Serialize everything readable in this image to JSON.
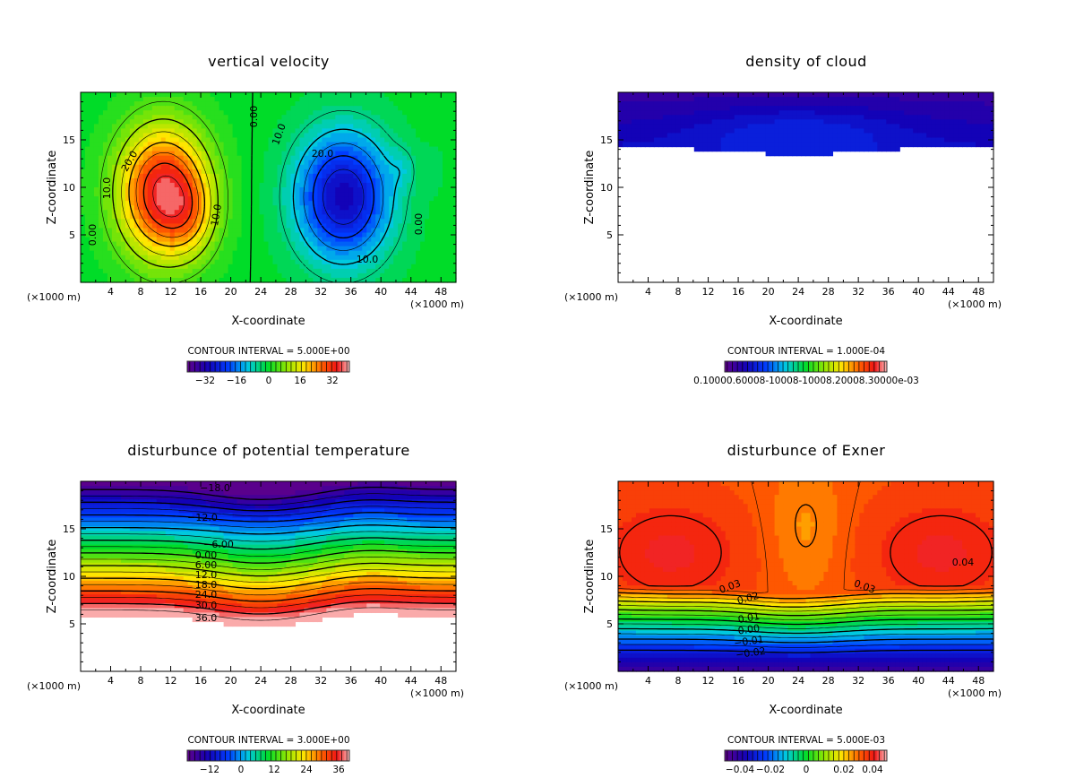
{
  "chart_data": [
    {
      "id": "w",
      "type": "heatmap",
      "title": "vertical velocity",
      "xlabel": "X-coordinate",
      "ylabel": "Z-coordinate",
      "x_unit_left": "(×1000 m)",
      "x_unit_right": "(×1000 m)",
      "xlim": [
        0,
        50
      ],
      "ylim": [
        0,
        20
      ],
      "x_ticks": [
        4,
        8,
        12,
        16,
        20,
        24,
        28,
        32,
        36,
        40,
        44,
        48
      ],
      "y_ticks": [
        5,
        10,
        15
      ],
      "contour_interval_text": "CONTOUR INTERVAL = 5.000E+00",
      "colorbar_ticks": [
        "−32",
        "−16",
        "0",
        "16",
        "32"
      ],
      "colorbar_range": [
        -40,
        40
      ],
      "contour_labels": [
        "0.00",
        "10.0",
        "20.0",
        "0.00",
        "10.0",
        "20.0",
        "10.0",
        "10.0",
        "0.00"
      ]
    },
    {
      "id": "qc",
      "type": "heatmap",
      "title": "density of cloud",
      "xlabel": "X-coordinate",
      "ylabel": "Z-coordinate",
      "x_unit_left": "(×1000 m)",
      "x_unit_right": "(×1000 m)",
      "xlim": [
        0,
        50
      ],
      "ylim": [
        0,
        20
      ],
      "x_ticks": [
        4,
        8,
        12,
        16,
        20,
        24,
        28,
        32,
        36,
        40,
        44,
        48
      ],
      "y_ticks": [
        5,
        10,
        15
      ],
      "contour_interval_text": "CONTOUR INTERVAL = 1.000E-04",
      "colorbar_ticks_text": "0.10000.60008-10008-10008.20008.30000e-03",
      "contour_labels": []
    },
    {
      "id": "pt",
      "type": "heatmap",
      "title": "disturbunce of potential temperature",
      "xlabel": "X-coordinate",
      "ylabel": "Z-coordinate",
      "x_unit_left": "(×1000 m)",
      "x_unit_right": "(×1000 m)",
      "xlim": [
        0,
        50
      ],
      "ylim": [
        0,
        20
      ],
      "x_ticks": [
        4,
        8,
        12,
        16,
        20,
        24,
        28,
        32,
        36,
        40,
        44,
        48
      ],
      "y_ticks": [
        5,
        10,
        15
      ],
      "contour_interval_text": "CONTOUR INTERVAL = 3.000E+00",
      "colorbar_ticks": [
        "−12",
        "0",
        "12",
        "24",
        "36"
      ],
      "colorbar_range": [
        -21,
        39
      ],
      "contour_labels": [
        "−18.0",
        "−12.0",
        "−6.00",
        "0.00",
        "6.00",
        "12.0",
        "18.0",
        "24.0",
        "30.0",
        "36.0"
      ]
    },
    {
      "id": "ex",
      "type": "heatmap",
      "title": "disturbunce of Exner",
      "xlabel": "X-coordinate",
      "ylabel": "Z-coordinate",
      "x_unit_left": "(×1000 m)",
      "x_unit_right": "(×1000 m)",
      "xlim": [
        0,
        50
      ],
      "ylim": [
        0,
        20
      ],
      "x_ticks": [
        4,
        8,
        12,
        16,
        20,
        24,
        28,
        32,
        36,
        40,
        44,
        48
      ],
      "y_ticks": [
        5,
        10,
        15
      ],
      "contour_interval_text": "CONTOUR INTERVAL = 5.000E-03",
      "colorbar_ticks": [
        "−0.04",
        "−0.02",
        "0",
        "0.02",
        "0.04"
      ],
      "colorbar_range": [
        -0.05,
        0.05
      ],
      "contour_labels": [
        "0.03",
        "0.03",
        "0.04",
        "0.02",
        "0.01",
        "0.00",
        "−0.01",
        "−0.02"
      ]
    }
  ]
}
